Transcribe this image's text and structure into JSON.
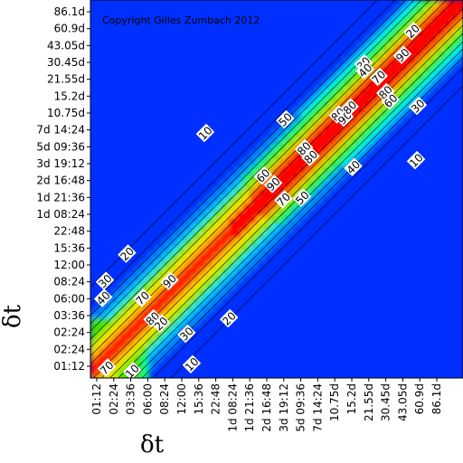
{
  "chart_data": {
    "type": "heatmap",
    "title": "",
    "xlabel": "δt",
    "ylabel": "δt",
    "annotation": "Copyright Gilles Zumbach 2012",
    "ticks": [
      "01:12",
      "02:24",
      "03:36",
      "06:00",
      "08:24",
      "12:00",
      "15:36",
      "22:48",
      "1d 08:24",
      "1d 21:36",
      "2d 16:48",
      "3d 19:12",
      "5d 09:36",
      "7d 14:24",
      "10.75d",
      "15.2d",
      "21.55d",
      "30.45d",
      "43.05d",
      "60.9d",
      "86.1d"
    ],
    "y_ticks": [
      "01:12",
      "02:24",
      "02:24",
      "03:36",
      "06:00",
      "08:24",
      "12:00",
      "15:36",
      "22:48",
      "1d 08:24",
      "1d 21:36",
      "2d 16:48",
      "3d 19:12",
      "5d 09:36",
      "7d 14:24",
      "10.75d",
      "15.2d",
      "21.55d",
      "30.45d",
      "43.05d",
      "60.9d",
      "86.1d"
    ],
    "contour_levels": [
      10,
      20,
      30,
      40,
      50,
      60,
      70,
      80,
      90
    ],
    "contour_labels": [
      {
        "text": "20",
        "xi": 18.6,
        "yi": 19.7
      },
      {
        "text": "90",
        "xi": 18.0,
        "yi": 18.3
      },
      {
        "text": "30",
        "xi": 15.7,
        "yi": 17.8
      },
      {
        "text": "40",
        "xi": 15.8,
        "yi": 17.4
      },
      {
        "text": "70",
        "xi": 16.6,
        "yi": 17.0
      },
      {
        "text": "80",
        "xi": 17.0,
        "yi": 16.1
      },
      {
        "text": "60",
        "xi": 17.3,
        "yi": 15.6
      },
      {
        "text": "30",
        "xi": 18.9,
        "yi": 15.3
      },
      {
        "text": "80",
        "xi": 14.2,
        "yi": 14.8
      },
      {
        "text": "90",
        "xi": 14.6,
        "yi": 14.6
      },
      {
        "text": "80",
        "xi": 14.9,
        "yi": 15.2
      },
      {
        "text": "50",
        "xi": 11.1,
        "yi": 14.5
      },
      {
        "text": "10",
        "xi": 6.4,
        "yi": 13.7
      },
      {
        "text": "80",
        "xi": 12.2,
        "yi": 12.8
      },
      {
        "text": "80",
        "xi": 12.6,
        "yi": 12.3
      },
      {
        "text": "40",
        "xi": 15.1,
        "yi": 11.7
      },
      {
        "text": "10",
        "xi": 18.8,
        "yi": 12.1
      },
      {
        "text": "60",
        "xi": 9.8,
        "yi": 11.2
      },
      {
        "text": "90",
        "xi": 10.4,
        "yi": 10.7
      },
      {
        "text": "70",
        "xi": 11.0,
        "yi": 9.8
      },
      {
        "text": "50",
        "xi": 12.1,
        "yi": 9.9
      },
      {
        "text": "20",
        "xi": 1.8,
        "yi": 6.6
      },
      {
        "text": "30",
        "xi": 0.5,
        "yi": 5.0
      },
      {
        "text": "40",
        "xi": 0.4,
        "yi": 4.0
      },
      {
        "text": "70",
        "xi": 2.7,
        "yi": 4.0
      },
      {
        "text": "90",
        "xi": 4.3,
        "yi": 5.0
      },
      {
        "text": "80",
        "xi": 3.3,
        "yi": 2.8
      },
      {
        "text": "20",
        "xi": 3.8,
        "yi": 2.5
      },
      {
        "text": "20",
        "xi": 7.8,
        "yi": 2.8
      },
      {
        "text": "30",
        "xi": 5.3,
        "yi": 1.9
      },
      {
        "text": "10",
        "xi": 5.6,
        "yi": 0.1
      },
      {
        "text": "70",
        "xi": 0.6,
        "yi": -0.1
      },
      {
        "text": "10",
        "xi": 2.1,
        "yi": -0.3
      }
    ],
    "colorscale": [
      "#0030ff",
      "#0088ff",
      "#00e8ff",
      "#00ff80",
      "#40e000",
      "#c0f000",
      "#ffe000",
      "#ff8000",
      "#ff0000"
    ],
    "grid": false,
    "legend": "none"
  }
}
